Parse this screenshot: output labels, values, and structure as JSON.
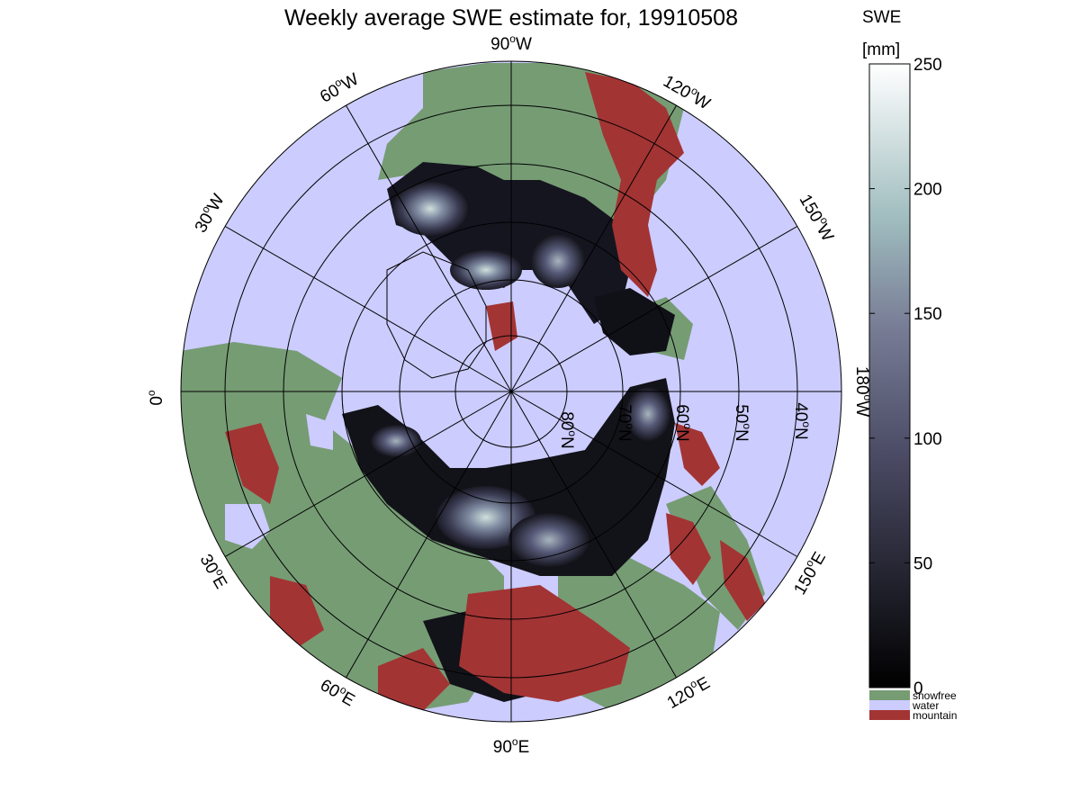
{
  "title": "Weekly average SWE estimate for, 19910508",
  "colorbar": {
    "title_line1": "SWE",
    "title_line2": "[mm]",
    "ticks": [
      "0",
      "50",
      "100",
      "150",
      "200",
      "250"
    ],
    "tick_values": [
      0,
      50,
      100,
      150,
      200,
      250
    ],
    "range": [
      0,
      250
    ],
    "colormap": "bone",
    "colors": {
      "low": "#000000",
      "mid": "#5e5f7d",
      "high_mid": "#a9c8c8",
      "high": "#ffffff"
    }
  },
  "legend": [
    {
      "label": "snowfree",
      "color": "#769c74"
    },
    {
      "label": "water",
      "color": "#ccccff"
    },
    {
      "label": "mountain",
      "color": "#a33434"
    }
  ],
  "map": {
    "projection": "north-polar azimuthal",
    "water_color": "#ccccff",
    "land_snowfree_color": "#769c74",
    "mountain_color": "#a33434",
    "longitude_labels": [
      {
        "base": "90",
        "deg": "o",
        "hemi": "W"
      },
      {
        "base": "120",
        "deg": "o",
        "hemi": "W"
      },
      {
        "base": "150",
        "deg": "o",
        "hemi": "W"
      },
      {
        "base": "180",
        "deg": "o",
        "hemi": "W"
      },
      {
        "base": "150",
        "deg": "o",
        "hemi": "E"
      },
      {
        "base": "120",
        "deg": "o",
        "hemi": "E"
      },
      {
        "base": "90",
        "deg": "o",
        "hemi": "E"
      },
      {
        "base": "60",
        "deg": "o",
        "hemi": "E"
      },
      {
        "base": "30",
        "deg": "o",
        "hemi": "E"
      },
      {
        "base": "0",
        "deg": "o",
        "hemi": ""
      },
      {
        "base": "30",
        "deg": "o",
        "hemi": "W"
      },
      {
        "base": "60",
        "deg": "o",
        "hemi": "W"
      }
    ],
    "latitude_labels": [
      {
        "base": "80",
        "deg": "o",
        "hemi": "N"
      },
      {
        "base": "70",
        "deg": "o",
        "hemi": "N"
      },
      {
        "base": "60",
        "deg": "o",
        "hemi": "N"
      },
      {
        "base": "50",
        "deg": "o",
        "hemi": "N"
      },
      {
        "base": "40",
        "deg": "o",
        "hemi": "N"
      }
    ]
  }
}
